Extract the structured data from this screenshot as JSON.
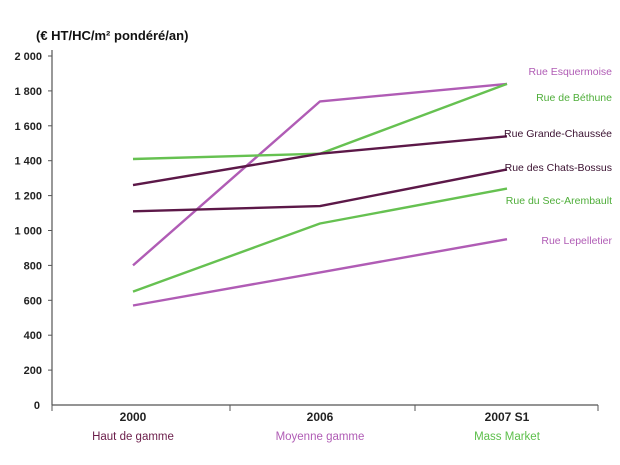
{
  "chart_data": {
    "type": "line",
    "unit_label": "(€ HT/HC/m² pondéré/an)",
    "categories": [
      "2000",
      "2006",
      "2007 S1"
    ],
    "category_sublabels": [
      {
        "text": "Haut de gamme",
        "color": "#6b1d4a"
      },
      {
        "text": "Moyenne gamme",
        "color": "#b05cb5"
      },
      {
        "text": "Mass Market",
        "color": "#5cbf4a"
      }
    ],
    "y_ticks": [
      "0",
      "200",
      "400",
      "600",
      "800",
      "1 000",
      "1 200",
      "1 400",
      "1 600",
      "1 800",
      "2 000"
    ],
    "ylim": [
      0,
      2000
    ],
    "grid": false,
    "colors": {
      "haut": "#5c1848",
      "moyenne": "#b05cb5",
      "mass": "#66c151",
      "axis": "#555555"
    },
    "series": [
      {
        "name": "Rue Esquermoise",
        "values": [
          800,
          1740,
          1840
        ],
        "color": "#b05cb5",
        "label_color": "#b05cb5"
      },
      {
        "name": "Rue de Béthune",
        "values": [
          1410,
          1440,
          1840
        ],
        "color": "#66c151",
        "label_color": "#4fae3a"
      },
      {
        "name": "Rue Grande-Chaussée",
        "values": [
          1260,
          1440,
          1540
        ],
        "color": "#5c1848",
        "label_color": "#3a1030"
      },
      {
        "name": "Rue des Chats-Bossus",
        "values": [
          1110,
          1140,
          1350
        ],
        "color": "#5c1848",
        "label_color": "#3a1030"
      },
      {
        "name": "Rue du Sec-Arembault",
        "values": [
          650,
          1040,
          1240
        ],
        "color": "#66c151",
        "label_color": "#4fae3a"
      },
      {
        "name": "Rue Lepelletier",
        "values": [
          570,
          760,
          950
        ],
        "color": "#b05cb5",
        "label_color": "#b05cb5"
      }
    ]
  }
}
